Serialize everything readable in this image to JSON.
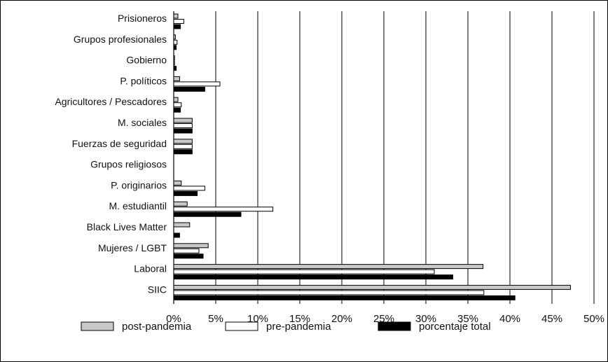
{
  "chart_data": {
    "type": "bar",
    "orientation": "horizontal",
    "categories": [
      "Prisioneros",
      "Grupos profesionales",
      "Gobierno",
      "P. políticos",
      "Agricultores / Pescadores",
      "M. sociales",
      "Fuerzas de seguridad",
      "Grupos religiosos",
      "P. originarios",
      "M. estudiantil",
      "Black Lives Matter",
      "Mujeres / LGBT",
      "Laboral",
      "SIIC"
    ],
    "series": [
      {
        "name": "post-pandemia",
        "color": "#c8c8c8",
        "values": [
          0.5,
          0.2,
          0.1,
          0.7,
          0.5,
          2.2,
          2.2,
          0,
          0.9,
          1.6,
          1.9,
          4.1,
          36.8,
          47.2
        ]
      },
      {
        "name": "pre-pandemia",
        "color": "#ffffff",
        "values": [
          1.2,
          0.4,
          0.1,
          5.5,
          0.9,
          2.2,
          2.2,
          0,
          3.7,
          11.8,
          0,
          3.0,
          31.0,
          36.9
        ]
      },
      {
        "name": "porcentaje total",
        "color": "#000000",
        "values": [
          0.8,
          0.3,
          0.3,
          3.7,
          0.8,
          2.2,
          2.2,
          0,
          2.8,
          8.0,
          0.7,
          3.5,
          33.2,
          40.6
        ]
      }
    ],
    "xlim": [
      0,
      50
    ],
    "x_ticks": [
      "0%",
      "5%",
      "10%",
      "15%",
      "20%",
      "25%",
      "30%",
      "35%",
      "40%",
      "45%",
      "50%"
    ],
    "grid": "vertical",
    "legend": "bottom",
    "title": "",
    "xlabel": "",
    "ylabel": ""
  }
}
